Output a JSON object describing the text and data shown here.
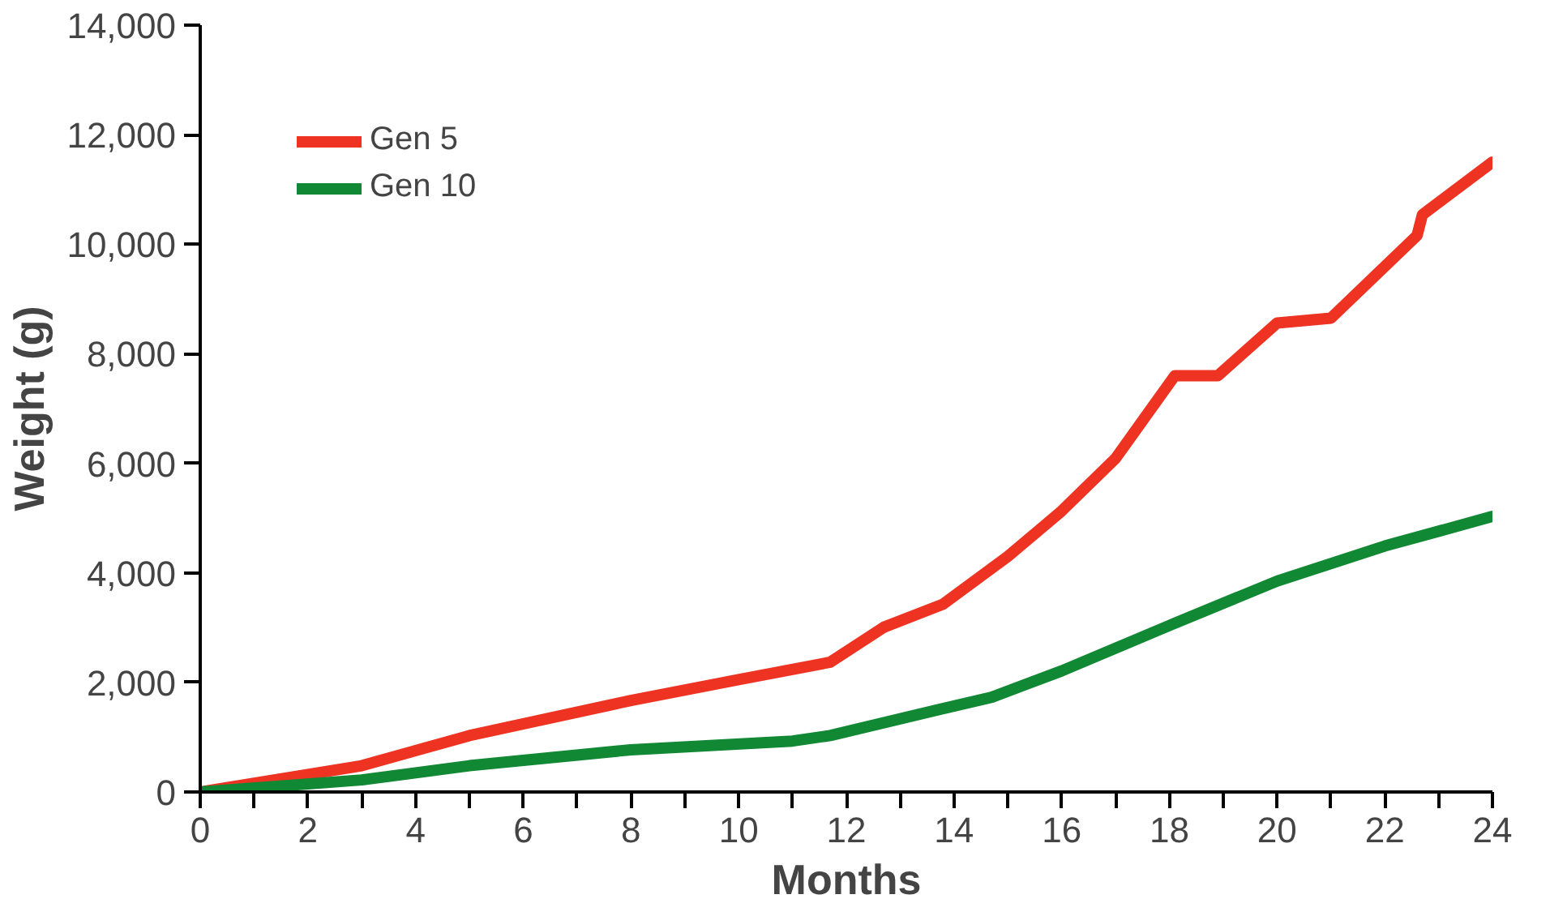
{
  "chart_data": {
    "type": "line",
    "xlabel": "Months",
    "ylabel": "Weight (g)",
    "xlim": [
      0,
      24
    ],
    "ylim": [
      0,
      14000
    ],
    "xticks": [
      0,
      {
        "value": 1,
        "label": null
      },
      2,
      {
        "value": 3,
        "label": null
      },
      4,
      {
        "value": 5,
        "label": null
      },
      6,
      {
        "value": 7,
        "label": null
      },
      8,
      {
        "value": 9,
        "label": null
      },
      10,
      {
        "value": 11,
        "label": null
      },
      12,
      {
        "value": 13,
        "label": null
      },
      14,
      {
        "value": 15,
        "label": null
      },
      16,
      {
        "value": 17,
        "label": null
      },
      18,
      {
        "value": 19,
        "label": null
      },
      20,
      {
        "value": 21,
        "label": null
      },
      22,
      {
        "value": 23,
        "label": null
      },
      24
    ],
    "yticks": [
      0,
      {
        "value": 2000,
        "label": "2,000"
      },
      {
        "value": 4000,
        "label": "4,000"
      },
      {
        "value": 6000,
        "label": "6,000"
      },
      {
        "value": 8000,
        "label": "8,000"
      },
      {
        "value": 10000,
        "label": "10,000"
      },
      {
        "value": 12000,
        "label": "12,000"
      },
      {
        "value": 14000,
        "label": "14,000"
      }
    ],
    "grid": false,
    "legend": "top left",
    "marker": "none",
    "line_style": "solid",
    "series": [
      {
        "name": "Gen 5",
        "color": "#ee3322",
        "x": [
          0,
          3,
          5,
          8,
          10,
          11.7,
          12.7,
          13.8,
          15,
          16,
          17,
          18.1,
          18.9,
          20,
          21,
          22.6,
          22.7,
          24
        ],
        "values": [
          0,
          480,
          1030,
          1670,
          2050,
          2370,
          3010,
          3430,
          4300,
          5130,
          6090,
          7600,
          7600,
          8560,
          8650,
          10160,
          10540,
          11500
        ]
      },
      {
        "name": "Gen 10",
        "color": "#118833",
        "x": [
          0,
          3,
          5,
          8,
          11,
          11.7,
          13.7,
          14.7,
          16,
          18,
          20,
          22,
          24
        ],
        "values": [
          0,
          220,
          480,
          770,
          930,
          1030,
          1500,
          1730,
          2210,
          3040,
          3850,
          4490,
          5030
        ]
      }
    ]
  }
}
